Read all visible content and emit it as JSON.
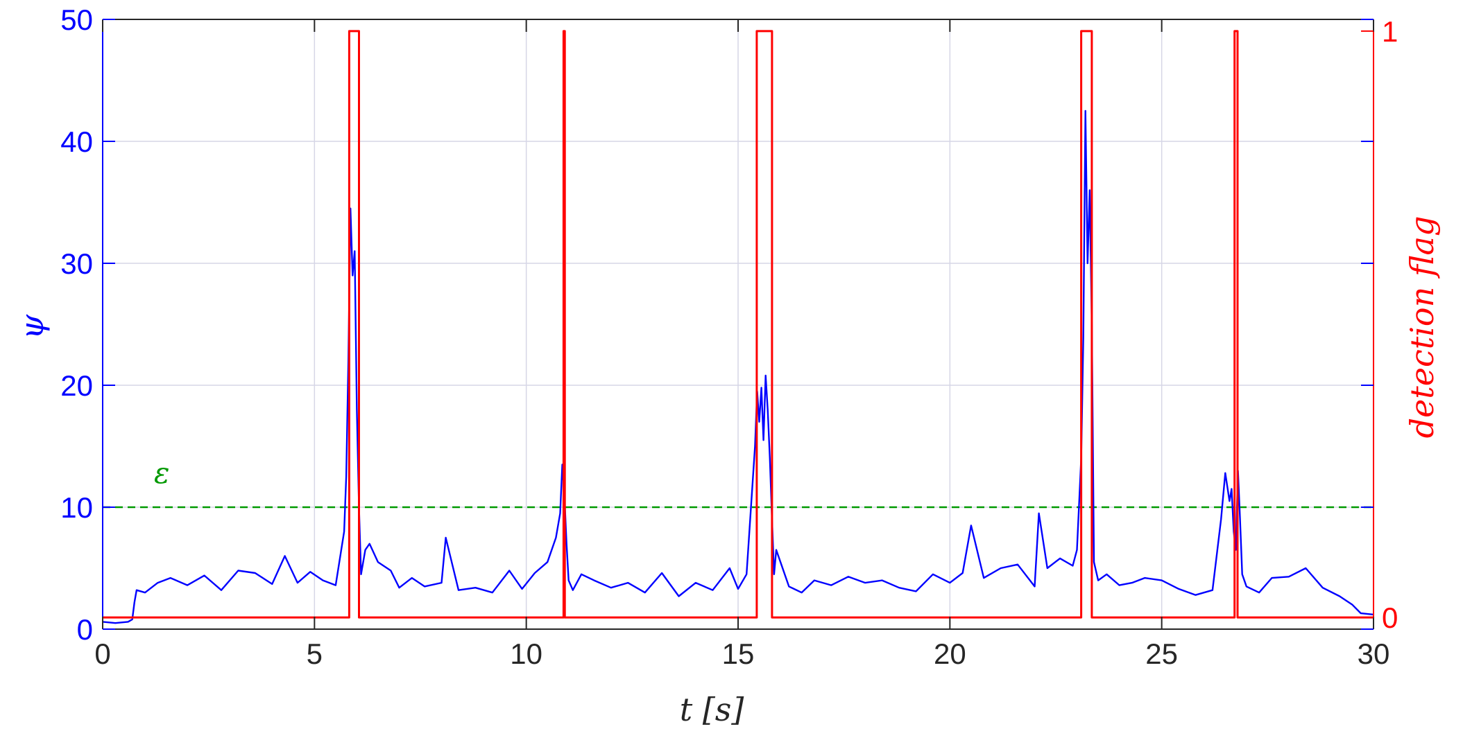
{
  "chart_data": {
    "type": "line",
    "xlabel": "t  [s]",
    "ylabel_left": "ψ",
    "ylabel_right": "detection flag",
    "xlim": [
      0,
      30
    ],
    "ylim_left": [
      0,
      50
    ],
    "ylim_right": [
      -0.02,
      1.02
    ],
    "xticks": [
      0,
      5,
      10,
      15,
      20,
      25,
      30
    ],
    "yticks_left": [
      0,
      10,
      20,
      30,
      40,
      50
    ],
    "yticks_right": [
      0,
      1
    ],
    "grid": true,
    "colors": {
      "psi": "#0000ff",
      "flag": "#ff0000",
      "threshold": "#009900",
      "grid": "#d6d6e6",
      "axes": "#262626"
    },
    "threshold": {
      "label": "ε",
      "value": 10
    },
    "series": [
      {
        "axis": "left",
        "x": [
          0,
          0.3,
          0.6,
          0.7,
          0.75,
          0.8,
          1.0,
          1.3,
          1.6,
          2.0,
          2.4,
          2.8,
          3.2,
          3.6,
          4.0,
          4.3,
          4.6,
          4.9,
          5.2,
          5.5,
          5.7,
          5.75,
          5.8,
          5.85,
          5.9,
          5.95,
          6.0,
          6.05,
          6.1,
          6.2,
          6.3,
          6.5,
          6.8,
          7.0,
          7.3,
          7.6,
          8.0,
          8.1,
          8.4,
          8.8,
          9.2,
          9.6,
          9.9,
          10.2,
          10.5,
          10.7,
          10.8,
          10.85,
          10.9,
          10.95,
          11.0,
          11.1,
          11.3,
          11.6,
          12.0,
          12.4,
          12.8,
          13.2,
          13.6,
          14.0,
          14.4,
          14.8,
          15.0,
          15.2,
          15.4,
          15.45,
          15.5,
          15.55,
          15.6,
          15.65,
          15.7,
          15.75,
          15.8,
          15.85,
          15.9,
          16.0,
          16.2,
          16.5,
          16.8,
          17.2,
          17.6,
          18.0,
          18.4,
          18.8,
          19.2,
          19.6,
          20.0,
          20.3,
          20.5,
          20.8,
          21.2,
          21.6,
          22.0,
          22.1,
          22.3,
          22.6,
          22.9,
          23.0,
          23.1,
          23.15,
          23.2,
          23.25,
          23.3,
          23.35,
          23.4,
          23.5,
          23.7,
          24.0,
          24.3,
          24.6,
          25.0,
          25.4,
          25.8,
          26.2,
          26.4,
          26.5,
          26.6,
          26.65,
          26.7,
          26.75,
          26.8,
          26.85,
          26.9,
          27.0,
          27.3,
          27.6,
          28.0,
          28.4,
          28.8,
          29.2,
          29.5,
          29.7,
          30.0
        ],
        "values": [
          0.6,
          0.5,
          0.6,
          0.8,
          2.2,
          3.2,
          3.0,
          3.8,
          4.2,
          3.6,
          4.4,
          3.2,
          4.8,
          4.6,
          3.7,
          6.0,
          3.8,
          4.7,
          4.0,
          3.6,
          8.0,
          12.5,
          22.0,
          34.5,
          29.0,
          31.0,
          18.0,
          10.0,
          4.5,
          6.5,
          7.0,
          5.5,
          4.8,
          3.4,
          4.2,
          3.5,
          3.8,
          7.5,
          3.2,
          3.4,
          3.0,
          4.8,
          3.3,
          4.6,
          5.5,
          7.5,
          9.5,
          13.5,
          11.0,
          7.0,
          4.0,
          3.2,
          4.5,
          4.0,
          3.4,
          3.8,
          3.0,
          4.6,
          2.7,
          3.8,
          3.2,
          5.0,
          3.3,
          4.5,
          15.0,
          19.5,
          17.0,
          19.8,
          15.5,
          20.8,
          18.0,
          14.0,
          9.0,
          4.5,
          6.5,
          5.5,
          3.5,
          3.0,
          4.0,
          3.6,
          4.3,
          3.8,
          4.0,
          3.4,
          3.1,
          4.5,
          3.8,
          4.6,
          8.5,
          4.2,
          5.0,
          5.3,
          3.5,
          9.5,
          5.0,
          5.8,
          5.2,
          6.5,
          14.0,
          24.0,
          42.5,
          30.0,
          36.0,
          25.0,
          5.5,
          4.0,
          4.5,
          3.6,
          3.8,
          4.2,
          4.0,
          3.3,
          2.8,
          3.2,
          9.0,
          12.8,
          10.5,
          11.5,
          8.0,
          6.5,
          13.0,
          9.0,
          4.5,
          3.5,
          3.0,
          4.2,
          4.3,
          5.0,
          3.4,
          2.7,
          2.0,
          1.3,
          1.2
        ]
      },
      {
        "axis": "right",
        "x": [
          0,
          5.82,
          5.82,
          6.05,
          6.05,
          10.88,
          10.88,
          10.91,
          10.91,
          15.44,
          15.44,
          15.8,
          15.8,
          23.1,
          23.1,
          23.35,
          23.35,
          26.72,
          26.72,
          26.79,
          26.79,
          30
        ],
        "values": [
          0,
          0,
          1,
          1,
          0,
          0,
          1,
          1,
          0,
          0,
          1,
          1,
          0,
          0,
          1,
          1,
          0,
          0,
          1,
          1,
          0,
          0
        ]
      }
    ]
  }
}
